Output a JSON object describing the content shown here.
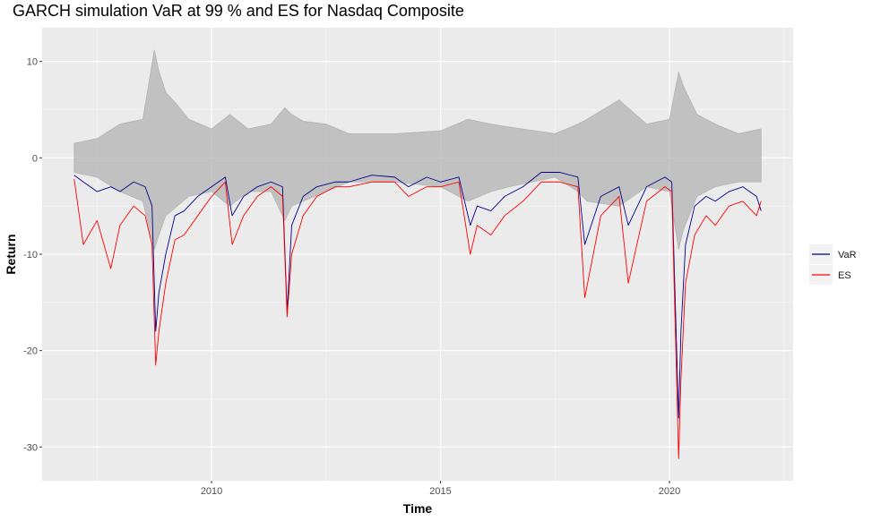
{
  "chart_data": {
    "type": "line",
    "title": "GARCH simulation VaR at 99 % and ES for Nasdaq Composite",
    "xlabel": "Time",
    "ylabel": "Return",
    "x_ticks": [
      2010,
      2015,
      2020
    ],
    "y_ticks": [
      10,
      0,
      -10,
      -20,
      -30
    ],
    "xlim": [
      2006.3,
      2022.7
    ],
    "ylim": [
      -33.5,
      13.5
    ],
    "grid": true,
    "legend_position": "right",
    "series": [
      {
        "key": "returns",
        "color": "#b3b3b3",
        "x": [
          2007.0,
          2007.5,
          2008.0,
          2008.5,
          2008.75,
          2008.85,
          2009.0,
          2009.25,
          2009.5,
          2010.0,
          2010.4,
          2010.8,
          2011.3,
          2011.6,
          2011.75,
          2012.0,
          2012.5,
          2013.0,
          2014.0,
          2015.0,
          2015.6,
          2016.1,
          2016.5,
          2017.5,
          2018.0,
          2018.2,
          2018.9,
          2019.5,
          2020.0,
          2020.2,
          2020.3,
          2020.6,
          2021.0,
          2021.5,
          2022.0
        ],
        "values": [
          1.5,
          2.0,
          3.5,
          4.0,
          11.2,
          9.0,
          6.8,
          5.5,
          4.0,
          3.0,
          4.5,
          3.0,
          3.5,
          5.2,
          4.5,
          3.8,
          3.5,
          2.5,
          2.5,
          2.8,
          4.0,
          3.5,
          3.2,
          2.5,
          3.5,
          4.0,
          6.0,
          3.5,
          4.0,
          8.9,
          7.5,
          4.5,
          3.5,
          2.5,
          3.0
        ],
        "lows": [
          -1.5,
          -2.0,
          -3.5,
          -4.5,
          -9.5,
          -8.0,
          -6.0,
          -5.0,
          -4.0,
          -3.5,
          -5.0,
          -3.5,
          -3.5,
          -6.5,
          -5.0,
          -4.5,
          -3.5,
          -2.5,
          -2.5,
          -3.0,
          -4.5,
          -3.5,
          -3.0,
          -2.0,
          -3.5,
          -4.5,
          -5.0,
          -3.0,
          -3.5,
          -9.5,
          -7.5,
          -4.0,
          -3.0,
          -2.5,
          -2.5
        ]
      },
      {
        "key": "var",
        "name": "VaR",
        "color": "#00008b",
        "x": [
          2007.0,
          2007.2,
          2007.5,
          2007.8,
          2008.0,
          2008.3,
          2008.55,
          2008.7,
          2008.78,
          2008.85,
          2009.0,
          2009.2,
          2009.4,
          2009.7,
          2010.0,
          2010.3,
          2010.45,
          2010.7,
          2011.0,
          2011.3,
          2011.55,
          2011.65,
          2011.75,
          2012.0,
          2012.3,
          2012.7,
          2013.0,
          2013.5,
          2014.0,
          2014.3,
          2014.7,
          2015.0,
          2015.4,
          2015.65,
          2015.8,
          2016.1,
          2016.4,
          2016.8,
          2017.2,
          2017.6,
          2018.0,
          2018.15,
          2018.5,
          2018.9,
          2019.1,
          2019.5,
          2019.9,
          2020.05,
          2020.2,
          2020.25,
          2020.35,
          2020.55,
          2020.8,
          2021.0,
          2021.3,
          2021.6,
          2021.9,
          2022.0
        ],
        "values": [
          -1.8,
          -2.5,
          -3.5,
          -3.0,
          -3.5,
          -2.5,
          -3.0,
          -5.0,
          -18.0,
          -14.0,
          -10.0,
          -6.0,
          -5.5,
          -4.0,
          -3.0,
          -2.0,
          -6.0,
          -4.0,
          -3.0,
          -2.5,
          -3.0,
          -16.0,
          -7.0,
          -4.0,
          -3.0,
          -2.5,
          -2.5,
          -1.8,
          -2.0,
          -3.0,
          -2.0,
          -2.5,
          -2.0,
          -7.0,
          -5.0,
          -5.5,
          -4.0,
          -3.0,
          -1.5,
          -1.5,
          -2.0,
          -9.0,
          -4.0,
          -3.0,
          -7.0,
          -3.0,
          -2.0,
          -2.5,
          -27.0,
          -18.0,
          -9.0,
          -5.0,
          -4.0,
          -4.5,
          -3.5,
          -3.0,
          -4.0,
          -5.5
        ]
      },
      {
        "key": "es",
        "name": "ES",
        "color": "#ff0000",
        "x": [
          2007.0,
          2007.2,
          2007.5,
          2007.8,
          2008.0,
          2008.3,
          2008.55,
          2008.7,
          2008.78,
          2008.85,
          2009.0,
          2009.2,
          2009.4,
          2009.7,
          2010.0,
          2010.3,
          2010.45,
          2010.7,
          2011.0,
          2011.3,
          2011.55,
          2011.65,
          2011.75,
          2012.0,
          2012.3,
          2012.7,
          2013.0,
          2013.5,
          2014.0,
          2014.3,
          2014.7,
          2015.0,
          2015.4,
          2015.65,
          2015.8,
          2016.1,
          2016.4,
          2016.8,
          2017.2,
          2017.6,
          2018.0,
          2018.15,
          2018.5,
          2018.9,
          2019.1,
          2019.5,
          2019.9,
          2020.05,
          2020.2,
          2020.25,
          2020.35,
          2020.55,
          2020.8,
          2021.0,
          2021.3,
          2021.6,
          2021.9,
          2022.0
        ],
        "values": [
          -2.2,
          -9.0,
          -6.5,
          -11.5,
          -7.0,
          -5.0,
          -6.0,
          -9.0,
          -21.5,
          -18.0,
          -13.0,
          -8.5,
          -8.0,
          -6.0,
          -4.0,
          -2.5,
          -9.0,
          -6.0,
          -4.0,
          -3.0,
          -4.0,
          -16.5,
          -10.0,
          -6.0,
          -4.0,
          -3.0,
          -3.0,
          -2.5,
          -2.5,
          -4.0,
          -3.0,
          -3.0,
          -2.5,
          -10.0,
          -7.0,
          -8.0,
          -6.0,
          -4.5,
          -2.5,
          -2.5,
          -3.0,
          -14.5,
          -6.0,
          -4.0,
          -13.0,
          -4.5,
          -3.0,
          -3.5,
          -31.2,
          -23.0,
          -13.0,
          -8.0,
          -6.0,
          -7.0,
          -5.0,
          -4.5,
          -6.0,
          -4.5
        ]
      }
    ],
    "legend": [
      {
        "label": "VaR",
        "color": "#00008b"
      },
      {
        "label": "ES",
        "color": "#ff0000"
      }
    ]
  }
}
